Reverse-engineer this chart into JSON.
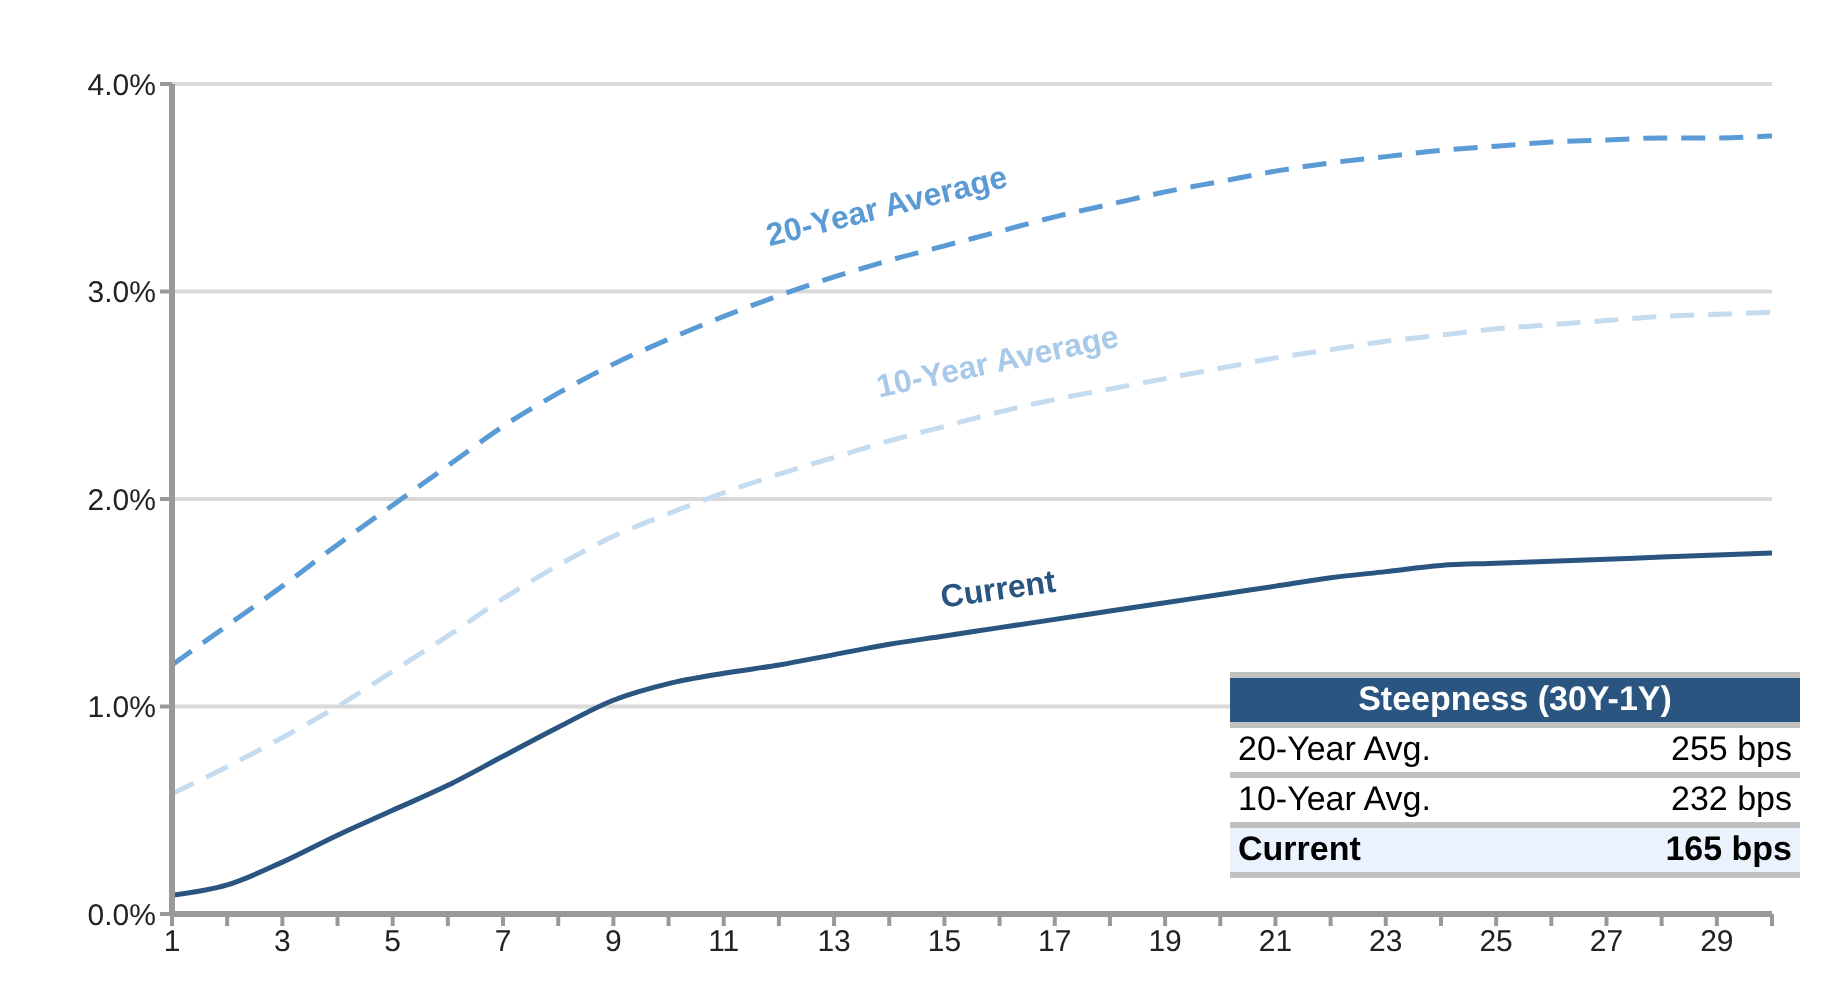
{
  "chart_data": {
    "type": "line",
    "x": [
      1,
      2,
      3,
      4,
      5,
      6,
      7,
      8,
      9,
      10,
      11,
      12,
      13,
      14,
      15,
      16,
      17,
      18,
      19,
      20,
      21,
      22,
      23,
      24,
      25,
      26,
      27,
      28,
      29,
      30
    ],
    "series": [
      {
        "name": "20-Year Average",
        "color": "#5b9bd5",
        "line_style": "dashed",
        "values": [
          1.2,
          1.39,
          1.58,
          1.78,
          1.97,
          2.16,
          2.35,
          2.51,
          2.65,
          2.77,
          2.88,
          2.98,
          3.07,
          3.15,
          3.22,
          3.29,
          3.36,
          3.42,
          3.48,
          3.53,
          3.58,
          3.62,
          3.65,
          3.68,
          3.7,
          3.72,
          3.73,
          3.74,
          3.74,
          3.75
        ]
      },
      {
        "name": "10-Year Average",
        "color": "#c5dcf0",
        "line_style": "dashed",
        "values": [
          0.58,
          0.71,
          0.85,
          1.0,
          1.17,
          1.34,
          1.52,
          1.68,
          1.82,
          1.93,
          2.03,
          2.12,
          2.2,
          2.28,
          2.35,
          2.42,
          2.48,
          2.53,
          2.58,
          2.63,
          2.68,
          2.72,
          2.76,
          2.79,
          2.82,
          2.84,
          2.86,
          2.88,
          2.89,
          2.9
        ]
      },
      {
        "name": "Current",
        "color": "#2a5580",
        "line_style": "solid",
        "values": [
          0.09,
          0.14,
          0.25,
          0.38,
          0.5,
          0.62,
          0.76,
          0.9,
          1.03,
          1.11,
          1.16,
          1.2,
          1.25,
          1.3,
          1.34,
          1.38,
          1.42,
          1.46,
          1.5,
          1.54,
          1.58,
          1.62,
          1.65,
          1.68,
          1.69,
          1.7,
          1.71,
          1.72,
          1.73,
          1.74
        ]
      }
    ],
    "xlim": [
      1,
      30
    ],
    "xticks": [
      1,
      {
        "value": 2,
        "label": null
      },
      3,
      {
        "value": 4,
        "label": null
      },
      5,
      {
        "value": 6,
        "label": null
      },
      7,
      {
        "value": 8,
        "label": null
      },
      9,
      {
        "value": 10,
        "label": null
      },
      11,
      {
        "value": 12,
        "label": null
      },
      13,
      {
        "value": 14,
        "label": null
      },
      15,
      {
        "value": 16,
        "label": null
      },
      17,
      {
        "value": 18,
        "label": null
      },
      19,
      {
        "value": 20,
        "label": null
      },
      21,
      {
        "value": 22,
        "label": null
      },
      23,
      {
        "value": 24,
        "label": null
      },
      25,
      {
        "value": 26,
        "label": null
      },
      27,
      {
        "value": 28,
        "label": null
      },
      29,
      {
        "value": 30,
        "label": null
      }
    ],
    "ylim": [
      0,
      4
    ],
    "yticks": [
      {
        "value": 0,
        "label": "0.0%"
      },
      {
        "value": 1,
        "label": "1.0%"
      },
      {
        "value": 2,
        "label": "2.0%"
      },
      {
        "value": 3,
        "label": "3.0%"
      },
      {
        "value": 4,
        "label": "4.0%"
      }
    ],
    "grid": "y",
    "legend": false,
    "marker": "none",
    "annotations": [
      "Steepness (30Y-1Y)",
      "20-Year Avg.",
      "255 bps",
      "10-Year Avg.",
      "232 bps",
      "Current",
      "165 bps"
    ]
  }
}
